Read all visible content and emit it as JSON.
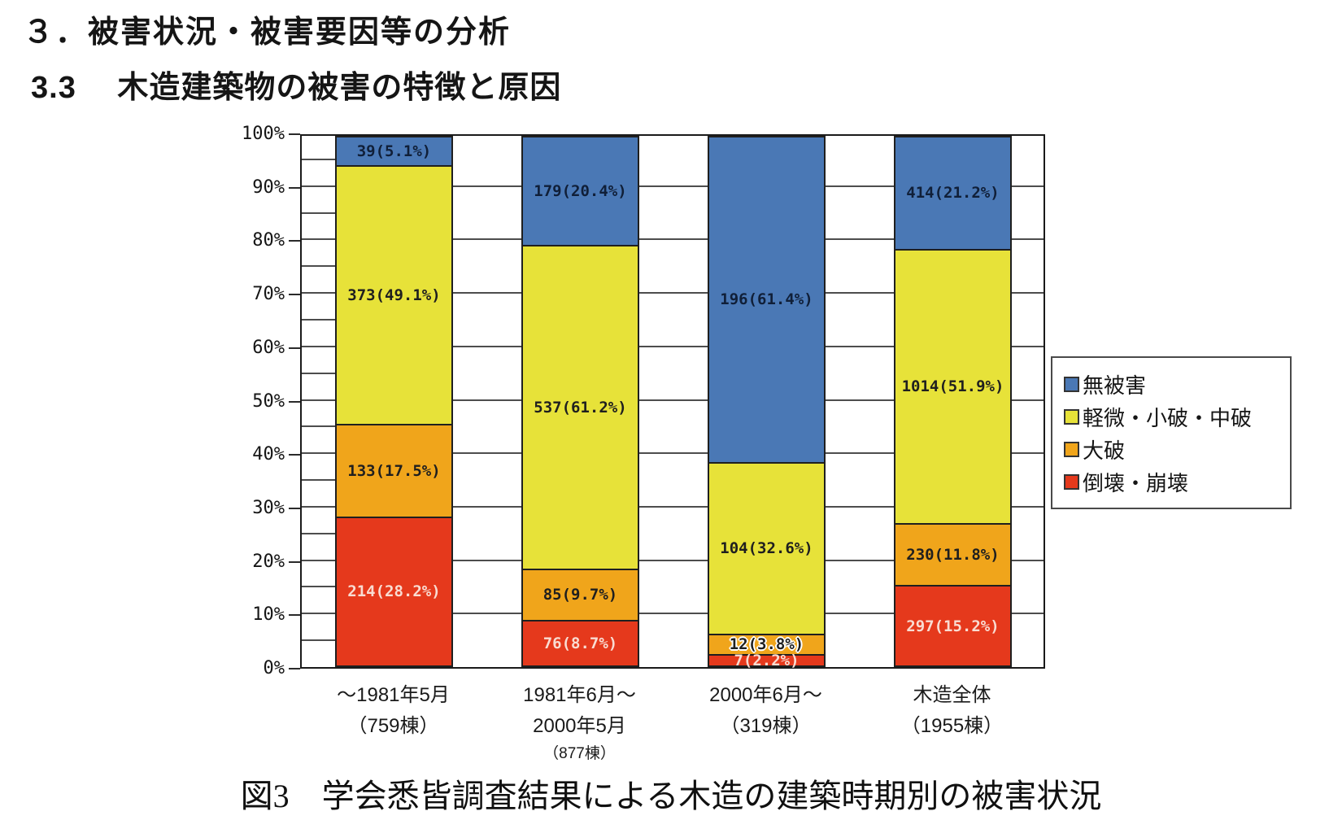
{
  "page": {
    "heading1": "３．被害状況・被害要因等の分析",
    "heading2": "3.3　 木造建築物の被害の特徴と原因",
    "caption": "図3　学会悉皆調査結果による木造の建築時期別の被害状況"
  },
  "chart_data": {
    "type": "bar",
    "subtype": "stacked-100-percent-column",
    "title": "図3　学会悉皆調査結果による木造の建築時期別の被害状況",
    "xlabel": "",
    "ylabel": "",
    "ylim": [
      0,
      100
    ],
    "grid": "on",
    "legend_position": "right",
    "y_axis": {
      "ticks": [
        "100%",
        "90%",
        "80%",
        "70%",
        "60%",
        "50%",
        "40%",
        "30%",
        "20%",
        "10%",
        "0%"
      ],
      "minor_interval_percent": 5,
      "major_interval_percent": 10
    },
    "categories": [
      {
        "lines": [
          "～1981年5月",
          "（759棟）"
        ],
        "small_last": false,
        "total": 759
      },
      {
        "lines": [
          "1981年6月～",
          "2000年5月",
          "（877棟）"
        ],
        "small_last": true,
        "total": 877
      },
      {
        "lines": [
          "2000年6月～",
          "（319棟）"
        ],
        "small_last": false,
        "total": 319
      },
      {
        "lines": [
          "木造全体",
          "（1955棟）"
        ],
        "small_last": false,
        "total": 1955
      }
    ],
    "series": [
      {
        "key": "collapse",
        "name": "倒壊・崩壊",
        "color": "#E5391C",
        "label_color": "#F9DCD2",
        "values": [
          214,
          76,
          7,
          297
        ],
        "pcts": [
          28.2,
          8.7,
          2.2,
          15.2
        ],
        "labels": [
          "214(28.2%)",
          "76(8.7%)",
          "7(2.2%)",
          "297(15.2%)"
        ]
      },
      {
        "key": "severe",
        "name": "大破",
        "color": "#F0A51B",
        "label_color": "#1f1f1f",
        "values": [
          133,
          85,
          12,
          230
        ],
        "pcts": [
          17.5,
          9.7,
          3.8,
          11.8
        ],
        "labels": [
          "133(17.5%)",
          "85(9.7%)",
          "12(3.8%)",
          "230(11.8%)"
        ]
      },
      {
        "key": "minor-moderate",
        "name": "軽微・小破・中破",
        "color": "#E7E239",
        "label_color": "#1f1f1f",
        "values": [
          373,
          537,
          104,
          1014
        ],
        "pcts": [
          49.1,
          61.2,
          32.6,
          51.9
        ],
        "labels": [
          "373(49.1%)",
          "537(61.2%)",
          "104(32.6%)",
          "1014(51.9%)"
        ]
      },
      {
        "key": "no-damage",
        "name": "無被害",
        "color": "#4A78B5",
        "label_color": "#101F38",
        "values": [
          39,
          179,
          196,
          414
        ],
        "pcts": [
          5.1,
          20.4,
          61.4,
          21.2
        ],
        "labels": [
          "39(5.1%)",
          "179(20.4%)",
          "196(61.4%)",
          "414(21.2%)"
        ]
      }
    ],
    "legend": [
      {
        "label": "無被害",
        "color": "#4A78B5"
      },
      {
        "label": "軽微・小破・中破",
        "color": "#E7E239"
      },
      {
        "label": "大破",
        "color": "#F0A51B"
      },
      {
        "label": "倒壊・崩壊",
        "color": "#E5391C"
      }
    ]
  }
}
